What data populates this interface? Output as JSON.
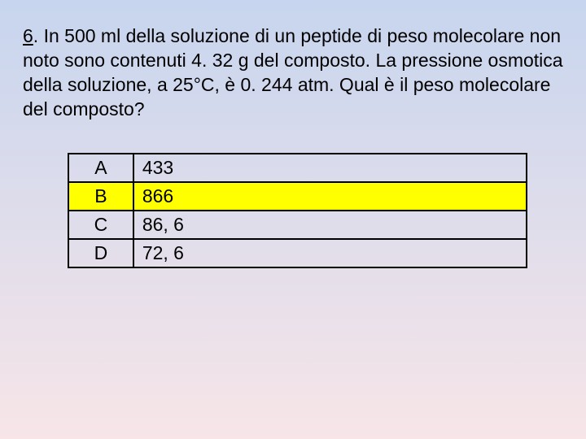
{
  "slide": {
    "background_gradient_start": "#c7d5ee",
    "background_gradient_end": "#f7e5e8",
    "question_number": "6",
    "question_text": ". In 500 ml della soluzione di un peptide di peso molecolare non noto sono contenuti 4. 32 g del composto. La pressione osmotica della soluzione, a 25°C, è 0. 244 atm. Qual è il peso molecolare del composto?",
    "text_color": "#000000",
    "question_fontsize": 23
  },
  "answers": {
    "border_color": "#000000",
    "highlight_color": "#ffff00",
    "rows": [
      {
        "label": "A",
        "value": "433",
        "highlighted": false
      },
      {
        "label": "B",
        "value": "866",
        "highlighted": true
      },
      {
        "label": "C",
        "value": "86, 6",
        "highlighted": false
      },
      {
        "label": "D",
        "value": "72, 6",
        "highlighted": false
      }
    ]
  }
}
